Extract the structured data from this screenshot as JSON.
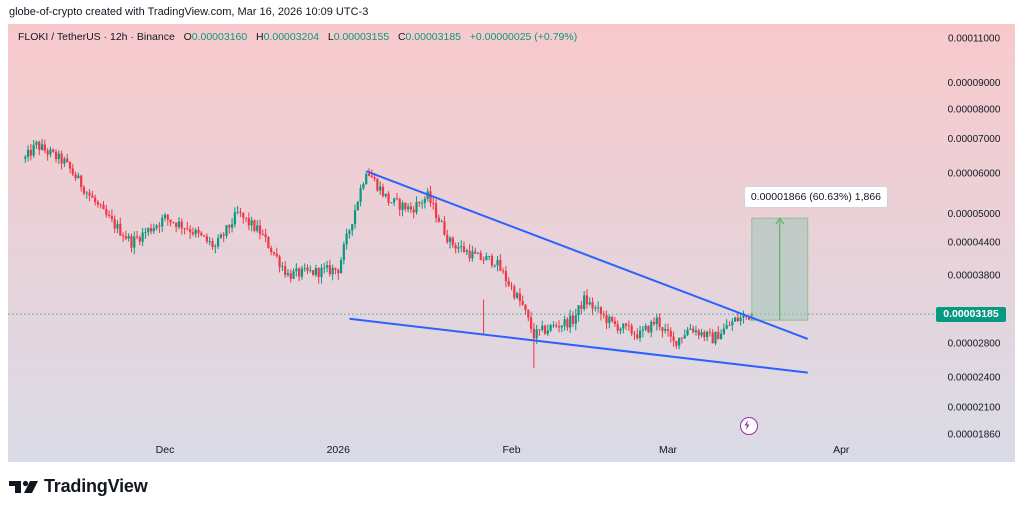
{
  "caption": "globe-of-crypto created with TradingView.com, Mar 16, 2026 10:09 UTC-3",
  "legend": {
    "symbol": "FLOKI / TetherUS · 12h · Binance",
    "o_label": "O",
    "o_value": "0.00003160",
    "h_label": "H",
    "h_value": "0.00003204",
    "l_label": "L",
    "l_value": "0.00003155",
    "c_label": "C",
    "c_value": "0.00003185",
    "change": "+0.00000025 (+0.79%)"
  },
  "current_price": "0.00003185",
  "measure_label": "0.00001866 (60.63%) 1,866",
  "brand": "TradingView",
  "colors": {
    "up": "#089981",
    "down": "#f23645",
    "trendline": "#2962ff",
    "measure_fill": "#a3c6bb",
    "bg_top": "#f8c9cc",
    "bg_bottom": "#d9dbe6"
  },
  "icons": {
    "logo": "tradingview-logo-icon",
    "flash": "flash-icon"
  },
  "chart_data": {
    "type": "candlestick",
    "title": "FLOKI / TetherUS · 12h · Binance",
    "scale": "log",
    "ylim": [
      1.83e-05,
      1.15e-05
    ],
    "y_ticks": [
      "0.00011000",
      "0.00009000",
      "0.00008000",
      "0.00007000",
      "0.00006000",
      "0.00005000",
      "0.00004400",
      "0.00003800",
      "0.00003185",
      "0.00002800",
      "0.00002400",
      "0.00002100",
      "0.00001860"
    ],
    "x_ticks": [
      "Dec",
      "2026",
      "Feb",
      "Mar",
      "Apr"
    ],
    "price_anchors": [
      {
        "date": "2025-11-06",
        "price": 6.4e-05
      },
      {
        "date": "2025-11-08",
        "price": 6.8e-05
      },
      {
        "date": "2025-11-13",
        "price": 6.3e-05
      },
      {
        "date": "2025-11-20",
        "price": 5e-05
      },
      {
        "date": "2025-11-25",
        "price": 4.4e-05
      },
      {
        "date": "2025-12-01",
        "price": 4.9e-05
      },
      {
        "date": "2025-12-05",
        "price": 4.7e-05
      },
      {
        "date": "2025-12-10",
        "price": 4.3e-05
      },
      {
        "date": "2025-12-14",
        "price": 5e-05
      },
      {
        "date": "2025-12-18",
        "price": 4.6e-05
      },
      {
        "date": "2025-12-23",
        "price": 3.8e-05
      },
      {
        "date": "2025-12-28",
        "price": 3.85e-05
      },
      {
        "date": "2026-01-01",
        "price": 3.9e-05
      },
      {
        "date": "2026-01-04",
        "price": 5.1e-05
      },
      {
        "date": "2026-01-06",
        "price": 6.1e-05
      },
      {
        "date": "2026-01-10",
        "price": 5.3e-05
      },
      {
        "date": "2026-01-14",
        "price": 5.1e-05
      },
      {
        "date": "2026-01-17",
        "price": 5.4e-05
      },
      {
        "date": "2026-01-21",
        "price": 4.4e-05
      },
      {
        "date": "2026-01-26",
        "price": 4.1e-05
      },
      {
        "date": "2026-01-29",
        "price": 4.05e-05
      },
      {
        "date": "2026-02-03",
        "price": 3.3e-05
      },
      {
        "date": "2026-02-05",
        "price": 2.9e-05
      },
      {
        "date": "2026-02-08",
        "price": 3e-05
      },
      {
        "date": "2026-02-12",
        "price": 3.1e-05
      },
      {
        "date": "2026-02-14",
        "price": 3.4e-05
      },
      {
        "date": "2026-02-19",
        "price": 3.05e-05
      },
      {
        "date": "2026-02-24",
        "price": 2.9e-05
      },
      {
        "date": "2026-02-27",
        "price": 3.1e-05
      },
      {
        "date": "2026-03-02",
        "price": 2.8e-05
      },
      {
        "date": "2026-03-05",
        "price": 3e-05
      },
      {
        "date": "2026-03-09",
        "price": 2.85e-05
      },
      {
        "date": "2026-03-13",
        "price": 3.1e-05
      },
      {
        "date": "2026-03-16",
        "price": 3.18e-05
      }
    ],
    "trendlines": [
      {
        "name": "upper",
        "from": {
          "date": "2026-01-06",
          "price": 6.05e-05
        },
        "to": {
          "date": "2026-03-26",
          "price": 2.85e-05
        }
      },
      {
        "name": "lower",
        "from": {
          "date": "2026-01-03",
          "price": 3.12e-05
        },
        "to": {
          "date": "2026-03-26",
          "price": 2.45e-05
        }
      }
    ],
    "measure": {
      "from_date": "2026-03-16",
      "to_date": "2026-03-26",
      "low": 3.1e-05,
      "high": 4.9e-05,
      "text": "0.00001866 (60.63%) 1,866"
    },
    "last_price": 3.185e-05
  }
}
